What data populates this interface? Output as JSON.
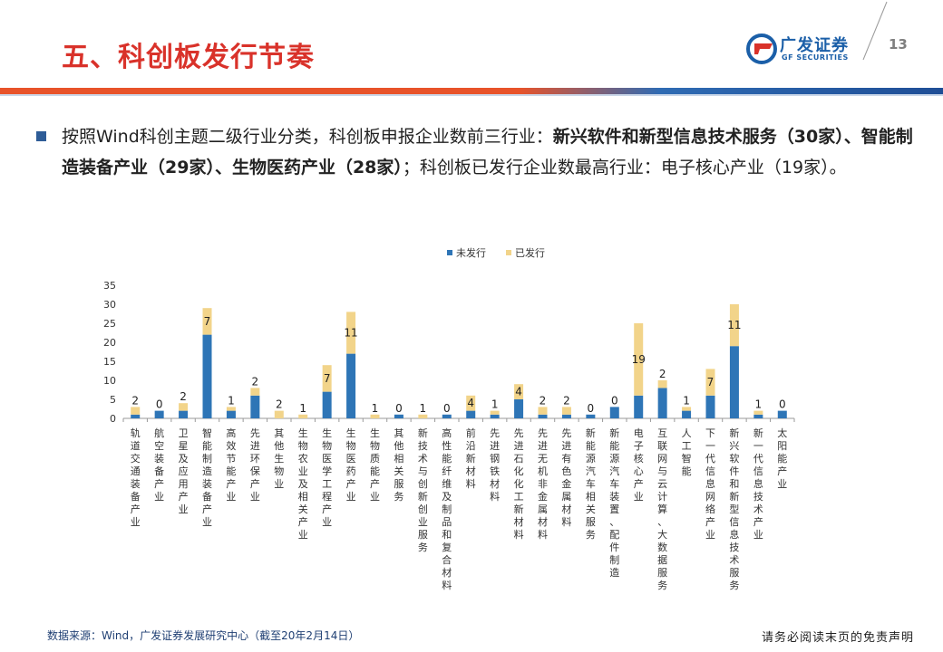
{
  "header": {
    "title": "五、科创板发行节奏",
    "logo_cn": "广发证券",
    "logo_en": "GF SECURITIES",
    "page_number": "13"
  },
  "paragraph": {
    "p1": "按照Wind科创主题二级行业分类，科创板申报企业数前三行业：",
    "b1": "新兴软件和新型信息技术服务（30家）、智能制造装备产业（29家）、生物医药产业（28家）",
    "p2": "；科创板已发行企业数最高行业：电子核心产业（19家）。"
  },
  "footer": {
    "source": "数据来源：Wind，广发证券发展研究中心（截至20年2月14日）",
    "disclaimer": "请务必阅读末页的免责声明"
  },
  "colors": {
    "title_red": "#d9322a",
    "unissued": "#2e75b6",
    "issued": "#f2d48a",
    "brand_blue": "#1b5fa8"
  },
  "chart_data": {
    "type": "bar",
    "stacked": true,
    "legend_position": "top-center",
    "grid": false,
    "ylim": [
      0,
      35
    ],
    "yticks": [
      0,
      5,
      10,
      15,
      20,
      25,
      30,
      35
    ],
    "categories": [
      "轨道交通装备产业",
      "航空装备产业",
      "卫星及应用产业",
      "智能制造装备产业",
      "高效节能产业",
      "先进环保产业",
      "其他生物业",
      "生物农业及相关产业",
      "生物医学工程产业",
      "生物医药产业",
      "生物质能产业",
      "其他相关服务",
      "新技术与创新创业服务",
      "高性能纤维及制品和复合材料",
      "前沿新材料",
      "先进钢铁材料",
      "先进石化化工新材料",
      "先进无机非金属材料",
      "先进有色金属材料",
      "新能源汽车相关服务",
      "新能源汽车装置、配件制造",
      "电子核心产业",
      "互联网与云计算、大数据服务",
      "人工智能",
      "下一代信息网络产业",
      "新兴软件和新型信息技术服务",
      "新一代信息技术产业",
      "太阳能产业"
    ],
    "series": [
      {
        "name": "未发行",
        "values": [
          1,
          2,
          2,
          22,
          2,
          6,
          0,
          0,
          7,
          17,
          0,
          1,
          0,
          1,
          2,
          1,
          5,
          1,
          1,
          1,
          3,
          6,
          8,
          2,
          6,
          19,
          1,
          2
        ]
      },
      {
        "name": "已发行",
        "values": [
          2,
          0,
          2,
          7,
          1,
          2,
          2,
          1,
          7,
          11,
          1,
          0,
          1,
          0,
          4,
          1,
          4,
          2,
          2,
          0,
          0,
          19,
          2,
          1,
          7,
          11,
          1,
          0
        ]
      }
    ],
    "data_labels": [
      2,
      0,
      2,
      7,
      1,
      2,
      2,
      1,
      7,
      11,
      1,
      0,
      1,
      0,
      4,
      1,
      4,
      2,
      2,
      0,
      0,
      19,
      2,
      1,
      7,
      11,
      1,
      0
    ]
  }
}
